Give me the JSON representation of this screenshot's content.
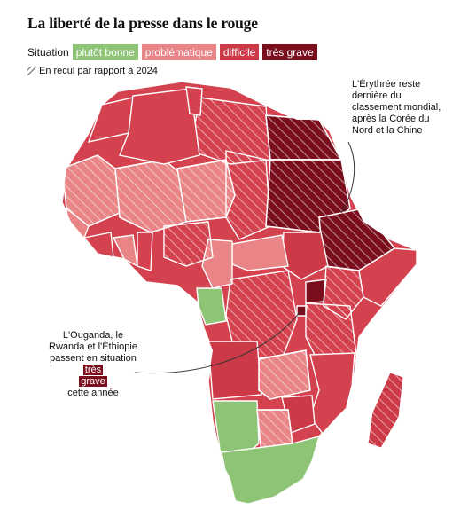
{
  "title": "La liberté de la presse dans le rouge",
  "legend": {
    "label": "Situation",
    "items": [
      {
        "label": "plutôt bonne",
        "color": "#8ec476"
      },
      {
        "label": "problématique",
        "color": "#e98587"
      },
      {
        "label": "difficile",
        "color": "#cc3947"
      },
      {
        "label": "très grave",
        "color": "#7a0e1d"
      }
    ]
  },
  "recul_label": "En recul par rapport à 2024",
  "annotations": {
    "eritrea": "L'Érythrée reste dernière du classement mondial, après la Corée du Nord et la Chine",
    "uganda_1": "L'Ouganda, le Rwanda et l'Éthiopie passent en situation",
    "uganda_hl_1": "très",
    "uganda_hl_2": "grave",
    "uganda_2": "cette année"
  }
}
